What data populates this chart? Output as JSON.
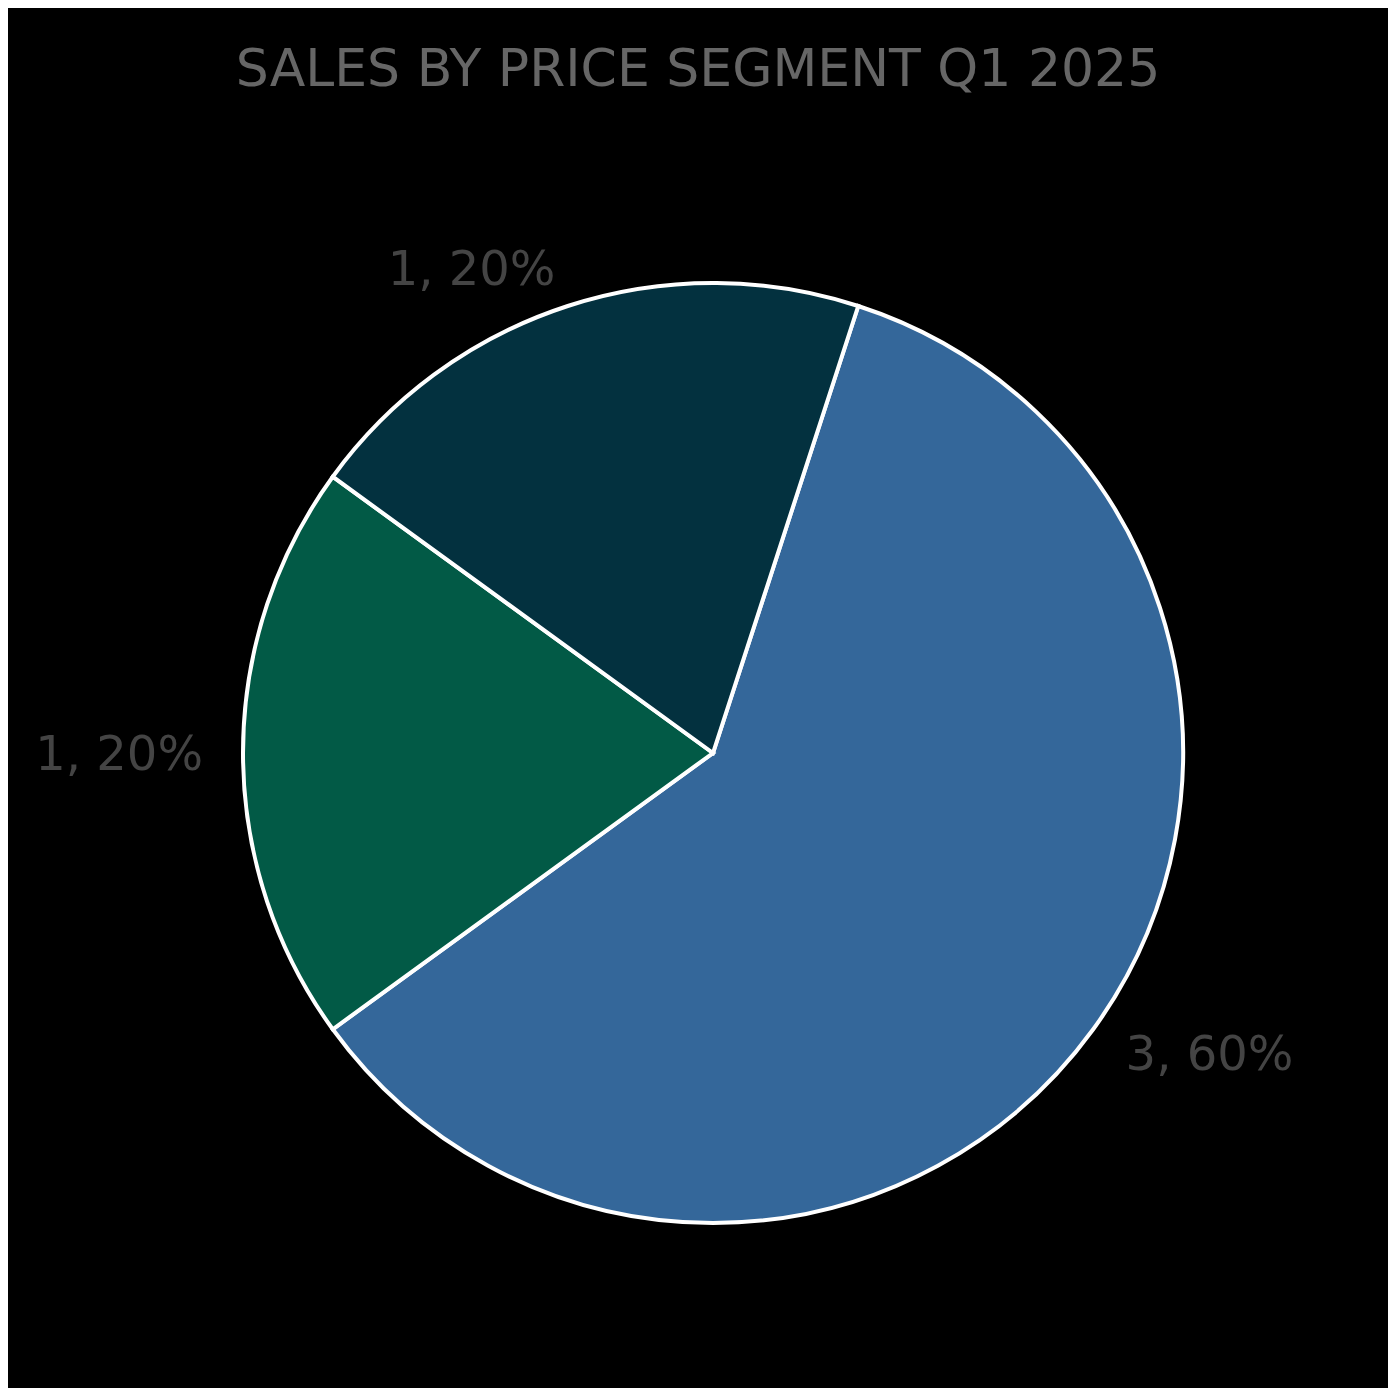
{
  "chart_data": {
    "type": "pie",
    "title": "SALES BY PRICE SEGMENT Q1 2025",
    "categories": [
      null,
      null,
      null
    ],
    "values": [
      3,
      1,
      1
    ],
    "colors": [
      "#34679a",
      "#025a46",
      "#03313f"
    ],
    "value_labels": [
      "3, 60%",
      "1, 20%",
      "1, 20%"
    ]
  }
}
